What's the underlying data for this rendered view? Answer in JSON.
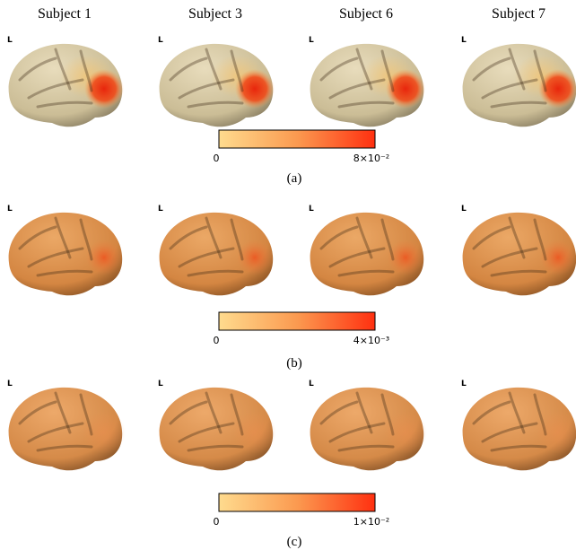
{
  "column_headers": [
    "Subject 1",
    "Subject 3",
    "Subject 6",
    "Subject 7"
  ],
  "panels": [
    {
      "caption": "(a)",
      "brain_labels": [
        "L",
        "L",
        "L",
        "L"
      ],
      "colorbar": {
        "min_label": "0",
        "max_label": "8×10⁻²"
      }
    },
    {
      "caption": "(b)",
      "brain_labels": [
        "L",
        "L",
        "L",
        "L"
      ],
      "colorbar": {
        "min_label": "0",
        "max_label": "4×10⁻³"
      }
    },
    {
      "caption": "(c)",
      "brain_labels": [
        "L",
        "L",
        "L",
        "L"
      ],
      "colorbar": {
        "min_label": "0",
        "max_label": "1×10⁻²"
      }
    }
  ]
}
